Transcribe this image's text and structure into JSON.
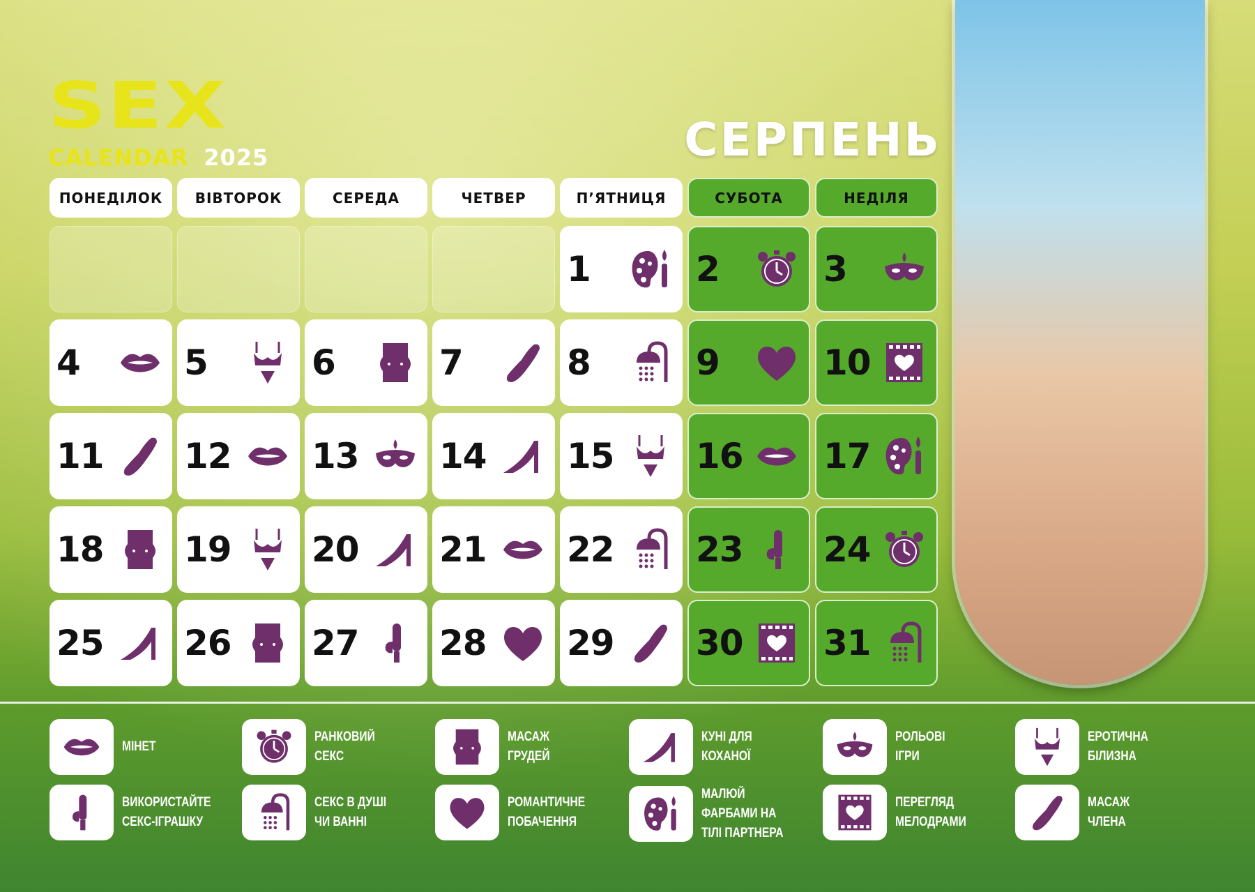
{
  "logo": {
    "word": "SEX",
    "subtitle": "CALENDAR",
    "year": "2025"
  },
  "month": "СЕРПЕНЬ",
  "colors": {
    "icon": "#6e2f6b",
    "weekend": "#55aa2c",
    "logo": "#e8e41c"
  },
  "weekdays": [
    {
      "label": "ПОНЕДІЛОК",
      "weekend": false
    },
    {
      "label": "ВІВТОРОК",
      "weekend": false
    },
    {
      "label": "СЕРЕДА",
      "weekend": false
    },
    {
      "label": "ЧЕТВЕР",
      "weekend": false
    },
    {
      "label": "П’ЯТНИЦЯ",
      "weekend": false
    },
    {
      "label": "СУБОТА",
      "weekend": true
    },
    {
      "label": "НЕДІЛЯ",
      "weekend": true
    }
  ],
  "leading_blank_days": 4,
  "days": [
    {
      "n": "1",
      "icon": "palette"
    },
    {
      "n": "2",
      "icon": "alarm"
    },
    {
      "n": "3",
      "icon": "mask"
    },
    {
      "n": "4",
      "icon": "lips"
    },
    {
      "n": "5",
      "icon": "lingerie"
    },
    {
      "n": "6",
      "icon": "torso"
    },
    {
      "n": "7",
      "icon": "massage"
    },
    {
      "n": "8",
      "icon": "shower"
    },
    {
      "n": "9",
      "icon": "heart"
    },
    {
      "n": "10",
      "icon": "film"
    },
    {
      "n": "11",
      "icon": "massage"
    },
    {
      "n": "12",
      "icon": "lips"
    },
    {
      "n": "13",
      "icon": "mask"
    },
    {
      "n": "14",
      "icon": "heel"
    },
    {
      "n": "15",
      "icon": "lingerie"
    },
    {
      "n": "16",
      "icon": "lips"
    },
    {
      "n": "17",
      "icon": "palette"
    },
    {
      "n": "18",
      "icon": "torso"
    },
    {
      "n": "19",
      "icon": "lingerie"
    },
    {
      "n": "20",
      "icon": "heel"
    },
    {
      "n": "21",
      "icon": "lips"
    },
    {
      "n": "22",
      "icon": "shower"
    },
    {
      "n": "23",
      "icon": "toy"
    },
    {
      "n": "24",
      "icon": "alarm"
    },
    {
      "n": "25",
      "icon": "heel"
    },
    {
      "n": "26",
      "icon": "torso"
    },
    {
      "n": "27",
      "icon": "toy"
    },
    {
      "n": "28",
      "icon": "heart"
    },
    {
      "n": "29",
      "icon": "massage"
    },
    {
      "n": "30",
      "icon": "film"
    },
    {
      "n": "31",
      "icon": "shower"
    }
  ],
  "legend": [
    {
      "icon": "lips",
      "lines": [
        "МІНЕТ"
      ]
    },
    {
      "icon": "alarm",
      "lines": [
        "РАНКОВИЙ",
        "СЕКС"
      ]
    },
    {
      "icon": "torso",
      "lines": [
        "МАСАЖ",
        "ГРУДЕЙ"
      ]
    },
    {
      "icon": "heel",
      "lines": [
        "КУНІ ДЛЯ",
        "КОХАНОЇ"
      ]
    },
    {
      "icon": "mask",
      "lines": [
        "РОЛЬОВІ",
        "ІГРИ"
      ]
    },
    {
      "icon": "lingerie",
      "lines": [
        "ЕРОТИЧНА",
        "БІЛИЗНА"
      ]
    },
    {
      "icon": "toy",
      "lines": [
        "ВИКОРИСТАЙТЕ",
        "СЕКС-ІГРАШКУ"
      ]
    },
    {
      "icon": "shower",
      "lines": [
        "СЕКС В ДУШІ",
        "ЧИ ВАННІ"
      ]
    },
    {
      "icon": "heart",
      "lines": [
        "РОМАНТИЧНЕ",
        "ПОБАЧЕННЯ"
      ]
    },
    {
      "icon": "palette",
      "lines": [
        "МАЛЮЙ",
        "ФАРБАМИ НА",
        "ТІЛІ ПАРТНЕРА"
      ]
    },
    {
      "icon": "film",
      "lines": [
        "ПЕРЕГЛЯД",
        "МЕЛОДРАМИ"
      ]
    },
    {
      "icon": "massage",
      "lines": [
        "МАСАЖ",
        "ЧЛЕНА"
      ]
    }
  ]
}
